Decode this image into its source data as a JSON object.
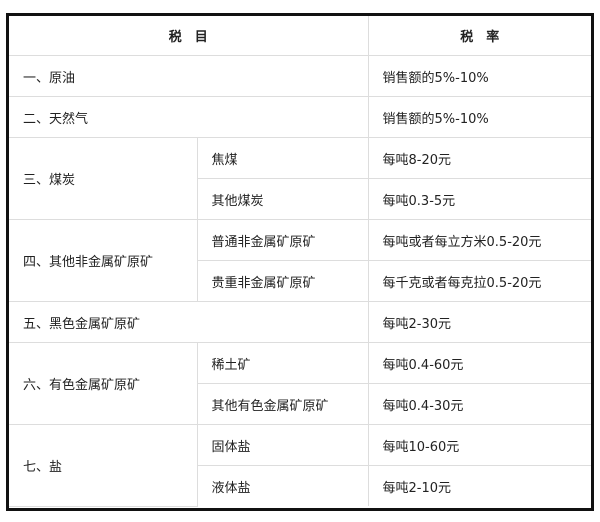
{
  "header": {
    "item": "税　目",
    "rate": "税　率"
  },
  "rows": [
    {
      "item": "一、原油",
      "rate": "销售额的5%-10%"
    },
    {
      "item": "二、天然气",
      "rate": "销售额的5%-10%"
    },
    {
      "item": "三、煤炭",
      "subs": [
        {
          "name": "焦煤",
          "rate": "每吨8-20元"
        },
        {
          "name": "其他煤炭",
          "rate": "每吨0.3-5元"
        }
      ]
    },
    {
      "item": "四、其他非金属矿原矿",
      "subs": [
        {
          "name": "普通非金属矿原矿",
          "rate": "每吨或者每立方米0.5-20元"
        },
        {
          "name": "贵重非金属矿原矿",
          "rate": "每千克或者每克拉0.5-20元"
        }
      ]
    },
    {
      "item": "五、黑色金属矿原矿",
      "rate": "每吨2-30元"
    },
    {
      "item": "六、有色金属矿原矿",
      "subs": [
        {
          "name": "稀土矿",
          "rate": "每吨0.4-60元"
        },
        {
          "name": "其他有色金属矿原矿",
          "rate": "每吨0.4-30元"
        }
      ]
    },
    {
      "item": "七、盐",
      "subs": [
        {
          "name": "固体盐",
          "rate": "每吨10-60元"
        },
        {
          "name": "液体盐",
          "rate": "每吨2-10元"
        }
      ]
    }
  ]
}
